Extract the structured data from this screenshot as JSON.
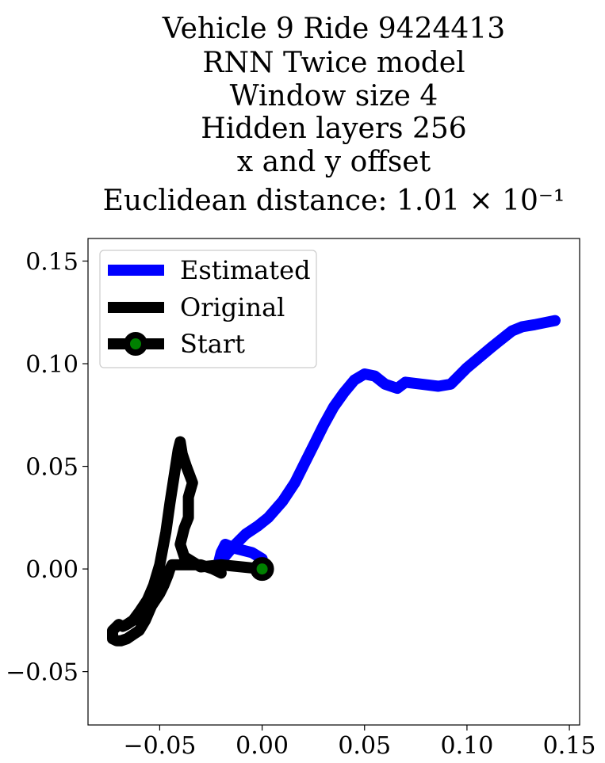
{
  "chart_data": {
    "type": "line",
    "title_lines": [
      "Vehicle 9 Ride 9424413",
      "RNN Twice model",
      "Window size 4",
      "Hidden layers 256",
      "x and y offset",
      "Euclidean distance: 1.01 × 10⁻¹"
    ],
    "xlabel": "",
    "ylabel": "",
    "xlim": [
      -0.085,
      0.155
    ],
    "ylim": [
      -0.076,
      0.161
    ],
    "x_ticks": [
      -0.05,
      0.0,
      0.05,
      0.1,
      0.15
    ],
    "x_tick_labels": [
      "−0.05",
      "0.00",
      "0.05",
      "0.10",
      "0.15"
    ],
    "y_ticks": [
      -0.05,
      0.0,
      0.05,
      0.1,
      0.15
    ],
    "y_tick_labels": [
      "−0.05",
      "0.00",
      "0.05",
      "0.10",
      "0.15"
    ],
    "legend_position": "top-left",
    "series": [
      {
        "name": "Estimated",
        "color": "#0000ff",
        "x": [
          0.0,
          -0.005,
          -0.013,
          -0.018,
          -0.02,
          -0.022,
          -0.02,
          -0.014,
          -0.008,
          -0.002,
          0.003,
          0.01,
          0.016,
          0.021,
          0.026,
          0.03,
          0.035,
          0.04,
          0.045,
          0.05,
          0.055,
          0.06,
          0.066,
          0.07,
          0.078,
          0.086,
          0.092,
          0.095,
          0.1,
          0.106,
          0.112,
          0.117,
          0.122,
          0.127,
          0.133,
          0.138,
          0.143
        ],
        "y": [
          0.005,
          0.008,
          0.01,
          0.012,
          0.008,
          0.0,
          0.004,
          0.011,
          0.017,
          0.021,
          0.025,
          0.033,
          0.042,
          0.052,
          0.062,
          0.07,
          0.079,
          0.086,
          0.092,
          0.095,
          0.094,
          0.09,
          0.088,
          0.091,
          0.09,
          0.089,
          0.09,
          0.093,
          0.098,
          0.103,
          0.108,
          0.112,
          0.116,
          0.118,
          0.119,
          0.12,
          0.121
        ]
      },
      {
        "name": "Original",
        "color": "#000000",
        "x": [
          0.0,
          -0.01,
          -0.02,
          -0.03,
          -0.038,
          -0.04,
          -0.038,
          -0.036,
          -0.036,
          -0.034,
          -0.037,
          -0.039,
          -0.04,
          -0.041,
          -0.043,
          -0.045,
          -0.047,
          -0.05,
          -0.053,
          -0.056,
          -0.058,
          -0.06,
          -0.063,
          -0.066,
          -0.068,
          -0.07,
          -0.073,
          -0.073,
          -0.071,
          -0.069,
          -0.066,
          -0.063,
          -0.06,
          -0.057,
          -0.054,
          -0.05,
          -0.048,
          -0.046,
          -0.045,
          -0.044,
          -0.042,
          -0.04,
          -0.035,
          -0.03,
          -0.024,
          -0.02
        ],
        "y": [
          0.0,
          0.001,
          0.002,
          0.001,
          0.006,
          0.012,
          0.02,
          0.025,
          0.035,
          0.042,
          0.05,
          0.056,
          0.062,
          0.058,
          0.045,
          0.032,
          0.018,
          0.002,
          -0.008,
          -0.015,
          -0.018,
          -0.021,
          -0.025,
          -0.027,
          -0.028,
          -0.027,
          -0.03,
          -0.034,
          -0.035,
          -0.035,
          -0.034,
          -0.032,
          -0.03,
          -0.025,
          -0.018,
          -0.012,
          -0.008,
          -0.003,
          0.0,
          0.002,
          0.002,
          0.002,
          0.002,
          0.002,
          0.0,
          -0.002
        ]
      },
      {
        "name": "Start",
        "color": "#000000",
        "marker_fill": "#008000",
        "x": [
          0.0
        ],
        "y": [
          0.0
        ]
      }
    ]
  }
}
